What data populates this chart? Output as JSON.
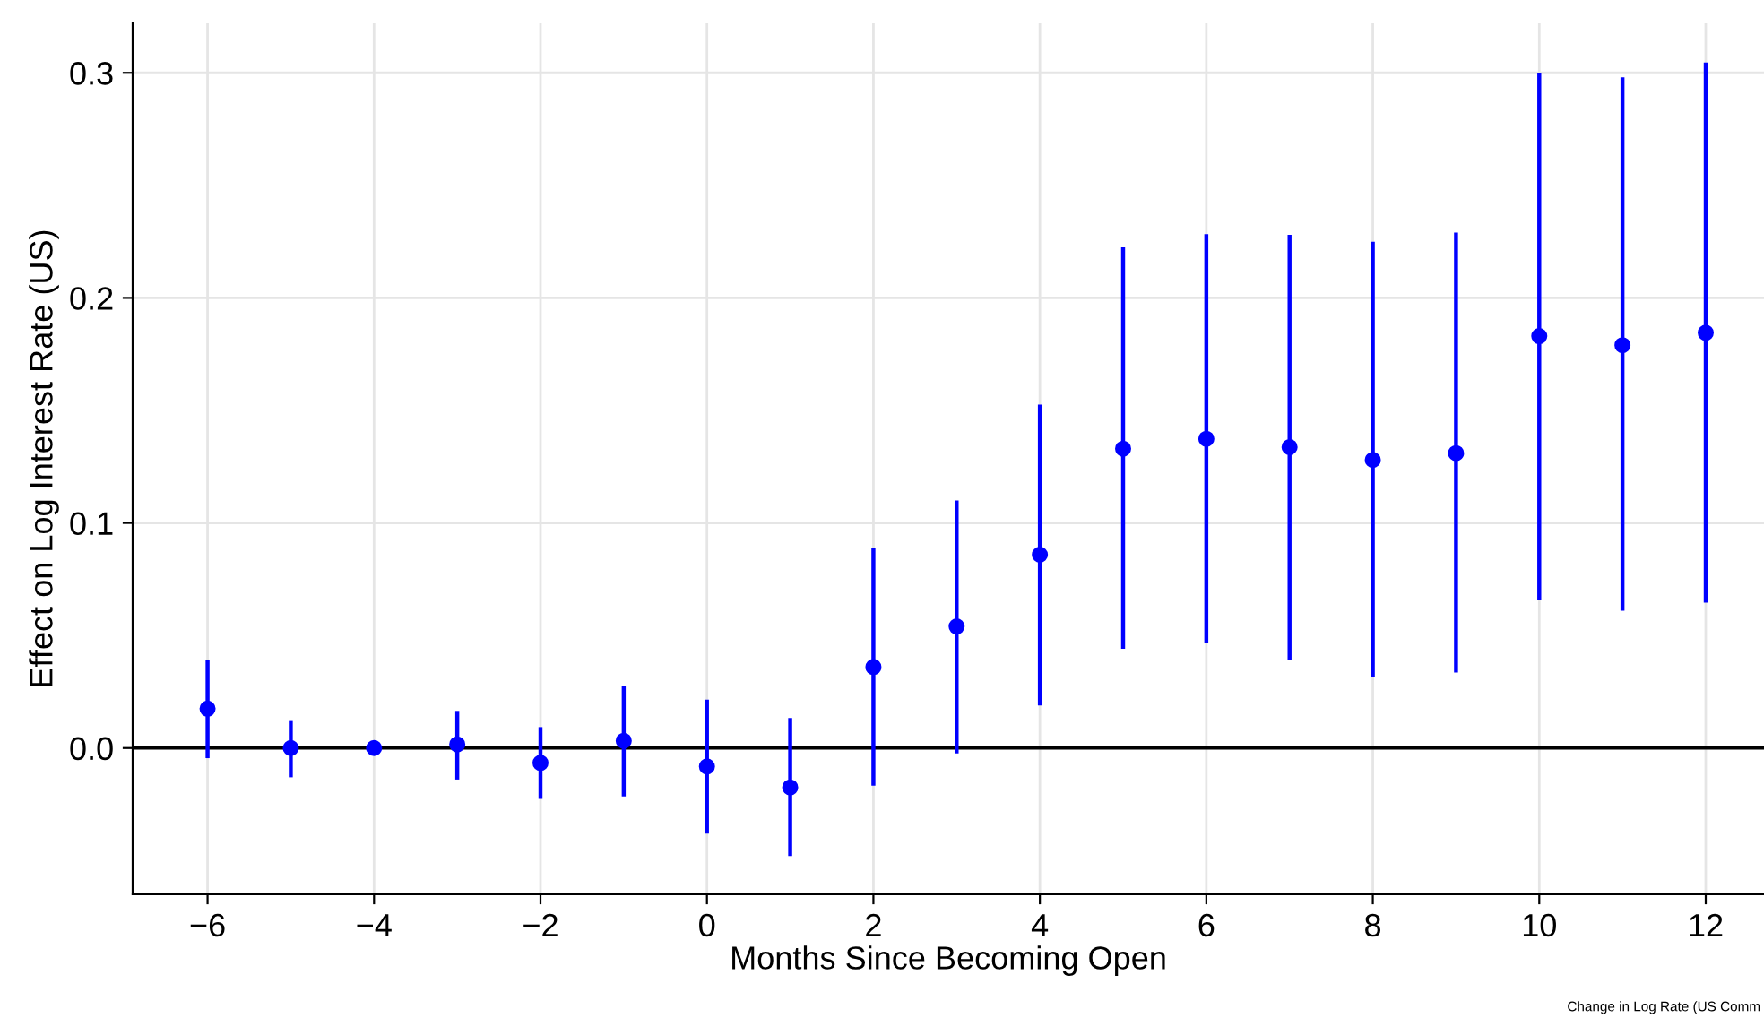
{
  "chart_data": {
    "type": "scatter",
    "xlabel": "Months Since Becoming Open",
    "ylabel": "Effect on Log Interest Rate (US)",
    "x": [
      -6,
      -5,
      -4,
      -3,
      -2,
      -1,
      0,
      1,
      2,
      3,
      4,
      5,
      6,
      7,
      8,
      9,
      10,
      11,
      12
    ],
    "series": [
      {
        "color": "#0000ff",
        "values": [
          0.0175,
          0,
          0,
          0.0016,
          -0.0066,
          0.0032,
          -0.0082,
          -0.0175,
          0.036,
          0.054,
          0.0859,
          0.133,
          0.1374,
          0.1337,
          0.128,
          0.131,
          0.183,
          0.179,
          0.1845
        ],
        "errors": [
          [
            -0.0045,
            0.039
          ],
          [
            -0.013,
            0.012
          ],
          null,
          [
            -0.014,
            0.0165
          ],
          [
            -0.0226,
            0.0093
          ],
          [
            -0.0215,
            0.0277
          ],
          [
            -0.038,
            0.0215
          ],
          [
            -0.048,
            0.0133
          ],
          [
            -0.0167,
            0.089
          ],
          [
            -0.0024,
            0.11
          ],
          [
            0.0189,
            0.1526
          ],
          [
            0.0441,
            0.2225
          ],
          [
            0.0465,
            0.2283
          ],
          [
            0.039,
            0.228
          ],
          [
            0.0317,
            0.225
          ],
          [
            0.0335,
            0.229
          ],
          [
            0.066,
            0.3
          ],
          [
            0.061,
            0.298
          ],
          [
            0.0646,
            0.3046
          ]
        ]
      }
    ],
    "xlim": [
      -6.9,
      12.7
    ],
    "ylim": [
      -0.065,
      0.322
    ],
    "xticks": [
      {
        "value": -6,
        "label": "−6"
      },
      {
        "value": -4,
        "label": "−4"
      },
      {
        "value": -2,
        "label": "−2"
      },
      0,
      2,
      4,
      6,
      8,
      10,
      12
    ],
    "yticks": [
      {
        "value": 0,
        "label": "0.0"
      },
      0.1,
      0.2,
      0.3
    ],
    "ref_lines": [
      {
        "axis": "y",
        "value": 0,
        "color": "#000000"
      }
    ],
    "grid": true,
    "marker": "circle",
    "annotations": [
      "Change in Log Rate (US Comm"
    ]
  }
}
